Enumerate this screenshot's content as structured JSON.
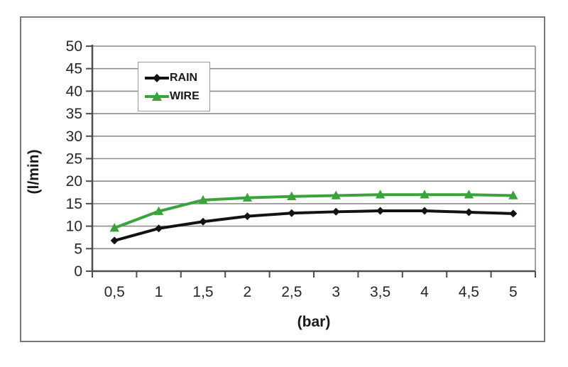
{
  "chart_data": {
    "type": "line",
    "title": "",
    "xlabel": "(bar)",
    "ylabel": "(l/min)",
    "categories": [
      "0,5",
      "1",
      "1,5",
      "2",
      "2,5",
      "3",
      "3,5",
      "4",
      "4,5",
      "5"
    ],
    "x_values": [
      0.5,
      1,
      1.5,
      2,
      2.5,
      3,
      3.5,
      4,
      4.5,
      5
    ],
    "ylim": [
      0,
      50
    ],
    "ytick_step": 5,
    "grid": "horizontal",
    "legend_position": "top-left-inside",
    "series": [
      {
        "name": "RAIN",
        "color": "#121212",
        "marker": "diamond",
        "values": [
          6.8,
          9.5,
          11.0,
          12.2,
          12.9,
          13.2,
          13.4,
          13.4,
          13.1,
          12.8
        ]
      },
      {
        "name": "WIRE",
        "color": "#3aa33b",
        "marker": "triangle",
        "values": [
          9.6,
          13.3,
          15.8,
          16.3,
          16.6,
          16.8,
          17.0,
          17.0,
          17.0,
          16.8
        ]
      }
    ]
  },
  "legend": {
    "items": [
      {
        "label": "RAIN"
      },
      {
        "label": "WIRE"
      }
    ]
  },
  "colors": {
    "frame_border": "#787878",
    "gridline": "#8c8c8c",
    "axis_line": "#4d4d4d",
    "tick_text": "#262626",
    "background": "#ffffff"
  }
}
